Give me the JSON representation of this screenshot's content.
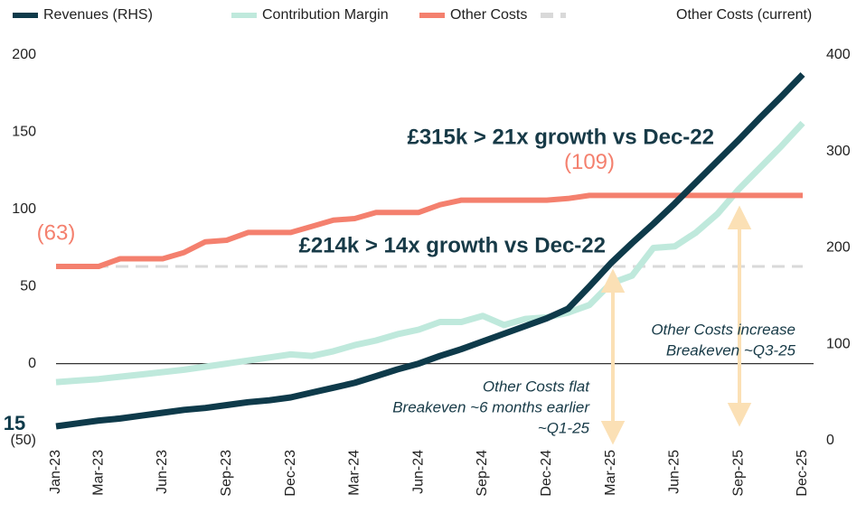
{
  "chart_data": {
    "type": "line",
    "categories": [
      "Jan-23",
      null,
      "Mar-23",
      null,
      null,
      "Jun-23",
      null,
      null,
      "Sep-23",
      null,
      null,
      "Dec-23",
      null,
      null,
      "Mar-24",
      null,
      null,
      "Jun-24",
      null,
      null,
      "Sep-24",
      null,
      null,
      "Dec-24",
      null,
      null,
      "Mar-25",
      null,
      null,
      "Jun-25",
      null,
      null,
      "Sep-25",
      null,
      null,
      "Dec-25"
    ],
    "series": [
      {
        "name": "Revenues (RHS)",
        "color": "#0e3a4a",
        "axis": "y2",
        "values": [
          15,
          18,
          21,
          23,
          26,
          29,
          32,
          34,
          37,
          40,
          42,
          45,
          50,
          55,
          60,
          67,
          74,
          80,
          88,
          95,
          103,
          111,
          119,
          127,
          137,
          160,
          184,
          205,
          225,
          246,
          268,
          290,
          312,
          335,
          357,
          380
        ]
      },
      {
        "name": "Contribution Margin",
        "color": "#bfe9dc",
        "values": [
          -12,
          -11,
          -10,
          -8.5,
          -7,
          -5.5,
          -4,
          -2,
          0,
          2,
          4,
          6,
          5,
          8,
          12,
          15,
          19,
          22,
          27,
          27,
          31,
          25,
          29,
          30,
          33,
          38,
          52,
          57,
          75,
          76,
          85,
          97,
          113,
          127,
          141,
          156
        ]
      },
      {
        "name": "Other Costs",
        "color": "#f4806e",
        "values": [
          63,
          63,
          63,
          68,
          68,
          68,
          72,
          79,
          80,
          85,
          85,
          85,
          89,
          93,
          94,
          98,
          98,
          98,
          103,
          106,
          106,
          106,
          106,
          106,
          107,
          109,
          109,
          109,
          109,
          109,
          109,
          109,
          109,
          109,
          109,
          109
        ],
        "value_labels": [
          "(63)",
          null,
          null,
          null,
          null,
          null,
          null,
          null,
          null,
          null,
          null,
          null,
          null,
          null,
          null,
          null,
          null,
          null,
          null,
          null,
          null,
          null,
          null,
          null,
          null,
          "(109)",
          null,
          null,
          null,
          null,
          null,
          null,
          null,
          null,
          null,
          null
        ]
      },
      {
        "name": "Other Costs (current)",
        "color": "#d9d9d9",
        "dashed": true,
        "values": [
          63,
          63,
          63,
          63,
          63,
          63,
          63,
          63,
          63,
          63,
          63,
          63,
          63,
          63,
          63,
          63,
          63,
          63,
          63,
          63,
          63,
          63,
          63,
          63,
          63,
          63,
          63,
          63,
          63,
          63,
          63,
          63,
          63,
          63,
          63,
          63
        ]
      }
    ],
    "ylim": [
      -50,
      200
    ],
    "yticks": [
      {
        "value": -50,
        "label": "(50)"
      },
      0,
      50,
      100,
      150,
      200
    ],
    "y2lim": [
      0,
      400
    ],
    "y2ticks": [
      0,
      100,
      200,
      300,
      400
    ],
    "annotations": [
      "£315k > 21x growth vs Dec-22",
      "£214k > 14x growth vs Dec-22",
      "Other Costs increase",
      "Breakeven ~Q3-25",
      "Other Costs flat",
      "Breakeven ~6 months earlier",
      "~Q1-25"
    ],
    "legend": "top"
  }
}
